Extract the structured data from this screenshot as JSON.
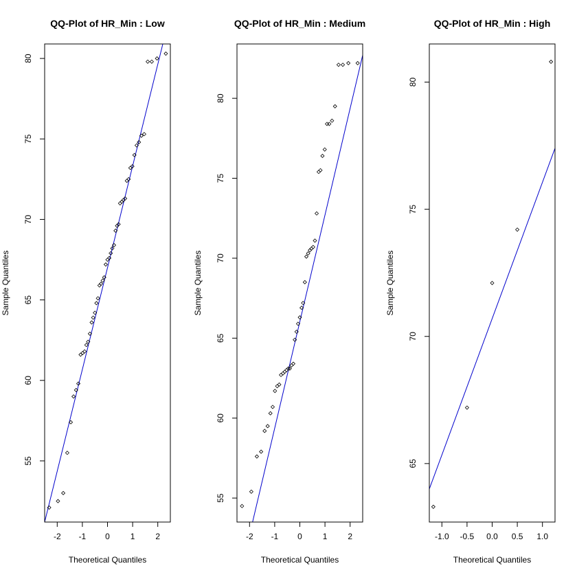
{
  "chart_data": [
    {
      "type": "scatter",
      "title": "QQ-Plot of HR_Min : Low",
      "xlabel": "Theoretical Quantiles",
      "ylabel": "Sample Quantiles",
      "xlim": [
        -2.5,
        2.5
      ],
      "ylim": [
        51.2,
        80.9
      ],
      "xticks": [
        -2,
        -1,
        0,
        1,
        2
      ],
      "yticks": [
        55,
        60,
        65,
        70,
        75,
        80
      ],
      "line_color": "#0000cc",
      "reference_line": [
        [
          -2.5,
          51.2
        ],
        [
          2.2,
          80.9
        ]
      ],
      "x": [
        -2.32,
        -1.97,
        -1.76,
        -1.6,
        -1.46,
        -1.35,
        -1.25,
        -1.16,
        -1.07,
        -0.99,
        -0.91,
        -0.84,
        -0.77,
        -0.7,
        -0.63,
        -0.57,
        -0.5,
        -0.44,
        -0.38,
        -0.32,
        -0.26,
        -0.19,
        -0.13,
        -0.07,
        0.0,
        0.07,
        0.13,
        0.19,
        0.26,
        0.32,
        0.38,
        0.44,
        0.5,
        0.57,
        0.63,
        0.7,
        0.77,
        0.84,
        0.91,
        0.99,
        1.07,
        1.16,
        1.25,
        1.35,
        1.46,
        1.6,
        1.76,
        1.97,
        2.32
      ],
      "y": [
        52.1,
        52.5,
        53.0,
        55.5,
        57.4,
        59.0,
        59.4,
        59.8,
        61.6,
        61.7,
        61.8,
        62.2,
        62.4,
        62.9,
        63.6,
        63.9,
        64.2,
        64.8,
        65.1,
        65.9,
        66.0,
        66.2,
        66.4,
        67.2,
        67.5,
        67.6,
        67.9,
        68.2,
        68.4,
        69.3,
        69.6,
        69.7,
        71.0,
        71.1,
        71.2,
        71.3,
        72.4,
        72.5,
        73.2,
        73.3,
        74.0,
        74.6,
        74.8,
        75.2,
        75.3,
        79.8,
        79.8,
        80.0,
        80.3
      ]
    },
    {
      "type": "scatter",
      "title": "QQ-Plot of HR_Min : Medium",
      "xlabel": "Theoretical Quantiles",
      "ylabel": "Sample Quantiles",
      "xlim": [
        -2.5,
        2.5
      ],
      "ylim": [
        53.5,
        83.4
      ],
      "xticks": [
        -2,
        -1,
        0,
        1,
        2
      ],
      "yticks": [
        55,
        60,
        65,
        70,
        75,
        80
      ],
      "line_color": "#0000cc",
      "reference_line": [
        [
          -1.88,
          53.5
        ],
        [
          2.5,
          82.7
        ]
      ],
      "x": [
        -2.3,
        -1.93,
        -1.71,
        -1.54,
        -1.4,
        -1.28,
        -1.17,
        -1.08,
        -0.99,
        -0.9,
        -0.82,
        -0.75,
        -0.67,
        -0.6,
        -0.53,
        -0.46,
        -0.4,
        -0.33,
        -0.26,
        -0.2,
        -0.13,
        -0.07,
        0.0,
        0.07,
        0.13,
        0.2,
        0.26,
        0.33,
        0.4,
        0.46,
        0.53,
        0.6,
        0.67,
        0.75,
        0.82,
        0.9,
        0.99,
        1.08,
        1.17,
        1.28,
        1.4,
        1.54,
        1.71,
        1.93,
        2.3
      ],
      "y": [
        54.5,
        55.4,
        57.6,
        57.9,
        59.2,
        59.5,
        60.3,
        60.7,
        61.7,
        62.0,
        62.1,
        62.7,
        62.8,
        62.9,
        63.0,
        63.1,
        63.1,
        63.3,
        63.4,
        64.9,
        65.4,
        65.9,
        66.3,
        66.9,
        67.2,
        68.5,
        70.1,
        70.3,
        70.5,
        70.6,
        70.7,
        71.1,
        72.8,
        75.4,
        75.5,
        76.4,
        76.8,
        78.4,
        78.4,
        78.6,
        79.5,
        82.1,
        82.1,
        82.2,
        82.2
      ]
    },
    {
      "type": "scatter",
      "title": "QQ-Plot of HR_Min : High",
      "xlabel": "Theoretical Quantiles",
      "ylabel": "Sample Quantiles",
      "xlim": [
        -1.25,
        1.25
      ],
      "ylim": [
        62.7,
        81.5
      ],
      "xticks": [
        -1.0,
        -0.5,
        0.0,
        0.5,
        1.0
      ],
      "yticks": [
        65,
        70,
        75,
        80
      ],
      "line_color": "#0000cc",
      "reference_line": [
        [
          -1.25,
          64.0
        ],
        [
          1.25,
          77.4
        ]
      ],
      "x": [
        -1.17,
        -0.5,
        0.0,
        0.5,
        1.17
      ],
      "y": [
        63.3,
        67.2,
        72.1,
        74.2,
        80.8
      ]
    }
  ]
}
